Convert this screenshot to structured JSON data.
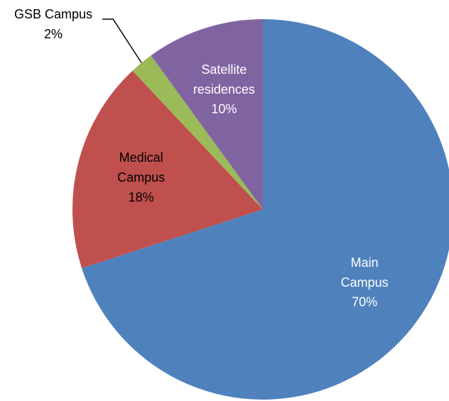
{
  "chart_data": {
    "type": "pie",
    "categories": [
      "Main Campus",
      "Medical Campus",
      "GSB Campus",
      "Satellite residences"
    ],
    "values": [
      70,
      18,
      2,
      10
    ],
    "value_labels": [
      "70%",
      "18%",
      "2%",
      "10%"
    ],
    "colors": [
      "#4f81bd",
      "#c0504d",
      "#9bbb59",
      "#8064a2"
    ]
  }
}
